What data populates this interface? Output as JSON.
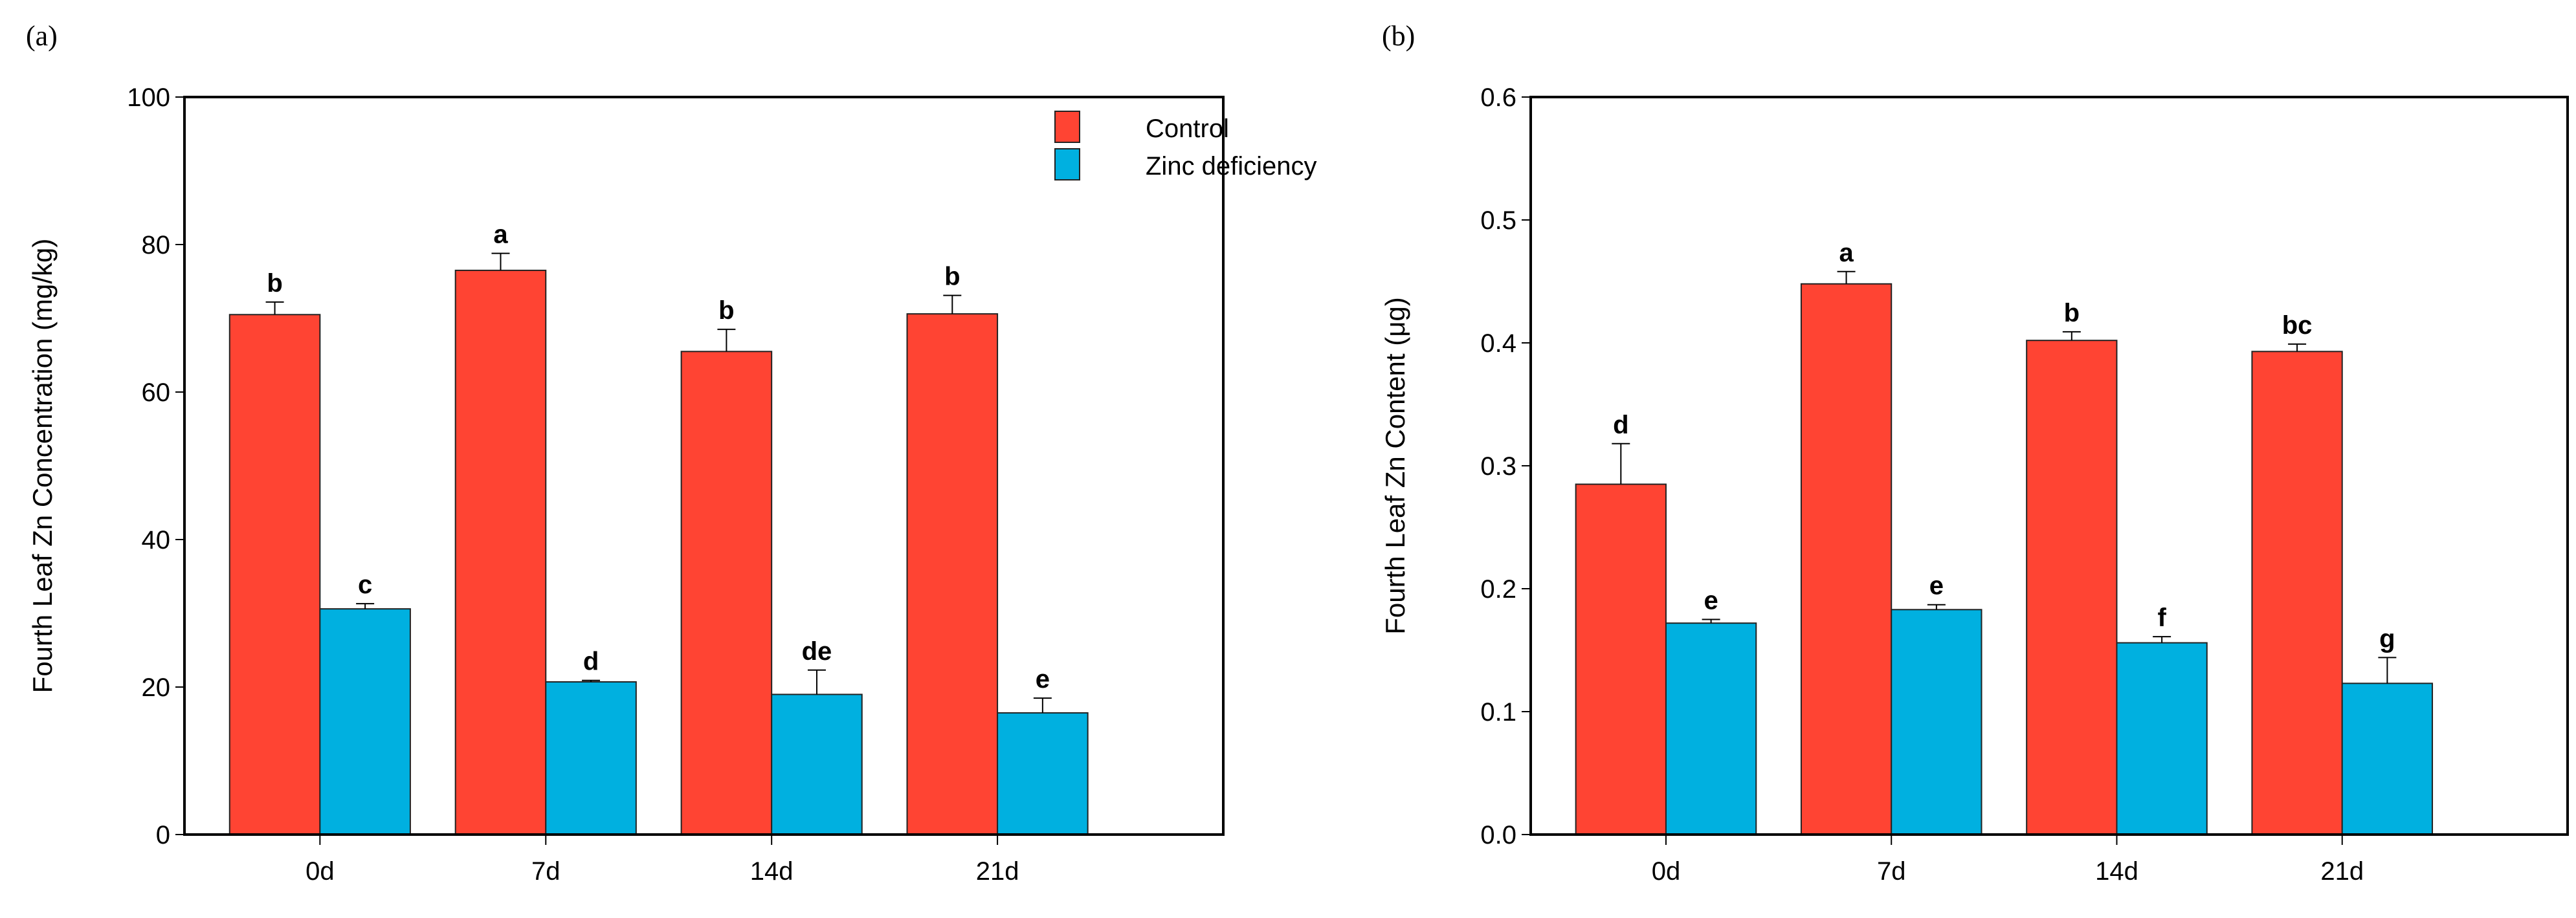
{
  "chart_data": [
    {
      "type": "bar",
      "panel_label": "(a)",
      "title": "",
      "xlabel": "",
      "ylabel": "Fourth Leaf Zn Concentration (mg/kg)",
      "categories": [
        "0d",
        "7d",
        "14d",
        "21d"
      ],
      "ylim": [
        0,
        100
      ],
      "yticks": [
        0,
        20,
        40,
        60,
        80,
        100
      ],
      "ytick_labels": [
        "0",
        "20",
        "40",
        "60",
        "80",
        "100"
      ],
      "grid": false,
      "legend": {
        "placement": "top-right",
        "entries": [
          "Control",
          "Zinc deficiency"
        ]
      },
      "series": [
        {
          "name": "Control",
          "color": "#FF4433",
          "values": [
            70.5,
            76.5,
            65.5,
            70.6
          ],
          "errors": [
            1.7,
            2.3,
            3.0,
            2.5
          ],
          "letters": [
            "b",
            "a",
            "b",
            "b"
          ]
        },
        {
          "name": "Zinc deficiency",
          "color": "#00B0E0",
          "values": [
            30.6,
            20.7,
            19.0,
            16.5
          ],
          "errors": [
            0.7,
            0.2,
            3.3,
            2.0
          ],
          "letters": [
            "c",
            "d",
            "de",
            "e"
          ]
        }
      ]
    },
    {
      "type": "bar",
      "panel_label": "(b)",
      "title": "",
      "xlabel": "",
      "ylabel": "Fourth Leaf Zn Content (μg)",
      "categories": [
        "0d",
        "7d",
        "14d",
        "21d"
      ],
      "ylim": [
        0,
        0.6
      ],
      "yticks": [
        0,
        0.1,
        0.2,
        0.3,
        0.4,
        0.5,
        0.6
      ],
      "ytick_labels": [
        "0.0",
        "0.1",
        "0.2",
        "0.3",
        "0.4",
        "0.5",
        "0.6"
      ],
      "grid": false,
      "legend": null,
      "series": [
        {
          "name": "Control",
          "color": "#FF4433",
          "values": [
            0.285,
            0.448,
            0.402,
            0.393
          ],
          "errors": [
            0.033,
            0.01,
            0.007,
            0.006
          ],
          "letters": [
            "d",
            "a",
            "b",
            "bc"
          ]
        },
        {
          "name": "Zinc deficiency",
          "color": "#00B0E0",
          "values": [
            0.172,
            0.183,
            0.156,
            0.123
          ],
          "errors": [
            0.003,
            0.004,
            0.005,
            0.021
          ],
          "letters": [
            "e",
            "e",
            "f",
            "g"
          ]
        }
      ]
    }
  ]
}
